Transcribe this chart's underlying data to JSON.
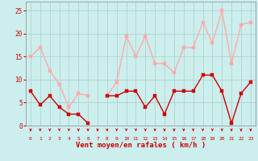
{
  "x": [
    0,
    1,
    2,
    3,
    4,
    5,
    6,
    7,
    8,
    9,
    10,
    11,
    12,
    13,
    14,
    15,
    16,
    17,
    18,
    19,
    20,
    21,
    22,
    23
  ],
  "rafales": [
    15,
    17,
    12,
    9,
    4,
    7,
    6.5,
    null,
    6.5,
    9.5,
    19.5,
    15,
    19.5,
    13.5,
    13.5,
    11.5,
    17,
    17,
    22.5,
    18,
    25,
    13.5,
    22,
    22.5
  ],
  "moyen": [
    7.5,
    4.5,
    6.5,
    4,
    2.5,
    2.5,
    0.5,
    null,
    6.5,
    6.5,
    7.5,
    7.5,
    4,
    6.5,
    2.5,
    7.5,
    7.5,
    7.5,
    11,
    11,
    7.5,
    0.5,
    7,
    9.5
  ],
  "color_rafales": "#ffaaaa",
  "color_moyen": "#cc0000",
  "bg_color": "#cceeed",
  "grid_color": "#aacccc",
  "xlabel": "Vent moyen/en rafales ( km/h )",
  "xlabel_color": "#cc0000",
  "tick_color": "#cc0000",
  "spine_color": "#888888",
  "ylim": [
    0,
    27
  ],
  "yticks": [
    0,
    5,
    10,
    15,
    20,
    25
  ],
  "xlim": [
    -0.5,
    23.5
  ],
  "marker_size": 2.5,
  "line_width": 1.0,
  "figsize": [
    3.2,
    2.0
  ],
  "dpi": 100
}
